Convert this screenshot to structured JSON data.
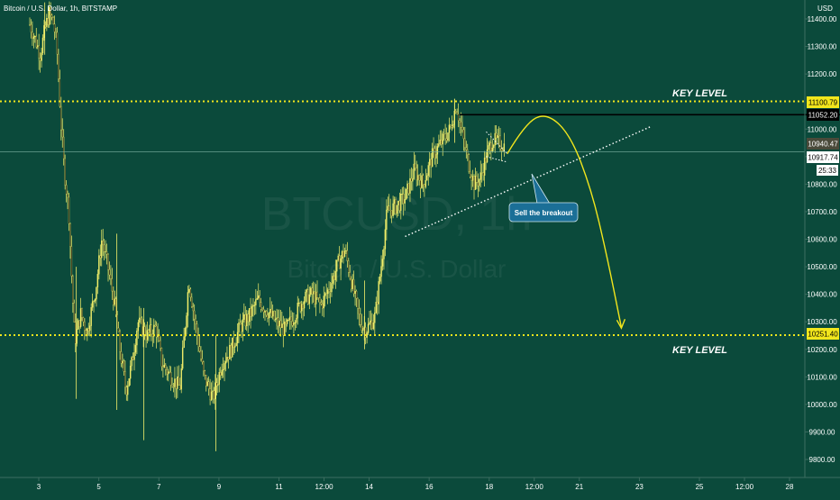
{
  "header": {
    "symbol_title": "Bitcoin / U.S. Dollar, 1h, BITSTAMP",
    "currency": "USD"
  },
  "watermark": {
    "ticker": "BTCUSD, 1h",
    "name": "Bitcoin / U.S. Dollar"
  },
  "colors": {
    "background": "#0b4a3b",
    "candle": "#f5f06a",
    "key_level": "#f2e61c",
    "resistance_line": "#000000",
    "trendline": "#ffffff",
    "callout_bg": "#1b6f97",
    "axis_text": "#ffffff"
  },
  "price_tags": {
    "key_level_upper": "11100.79",
    "resistance": "11052.20",
    "last_price": "10940.47",
    "mid_line": "10917.74",
    "countdown": "25:33",
    "key_level_lower": "10251.40"
  },
  "annotations": {
    "key_level_upper_label": "KEY LEVEL",
    "key_level_lower_label": "KEY LEVEL",
    "callout": "Sell the breakout"
  },
  "chart_data": {
    "type": "candlestick",
    "title": "Bitcoin / U.S. Dollar, 1h, BITSTAMP",
    "ylabel": "USD",
    "ylim": [
      9750,
      11480
    ],
    "y_ticks": [
      11400,
      11300,
      11200,
      11000,
      10900,
      10800,
      10700,
      10600,
      10500,
      10400,
      10300,
      10200,
      10100,
      10000,
      9900,
      9800
    ],
    "x_ticks": [
      "3",
      "5",
      "7",
      "9",
      "11",
      "12:00",
      "14",
      "16",
      "18",
      "12:00",
      "21",
      "23",
      "25",
      "12:00",
      "28"
    ],
    "x_range_days": [
      2.5,
      28.2
    ],
    "series": [
      {
        "type": "close_path",
        "points": [
          {
            "x": 2.7,
            "y": 11380
          },
          {
            "x": 2.9,
            "y": 11320
          },
          {
            "x": 3.05,
            "y": 11270
          },
          {
            "x": 3.2,
            "y": 11360
          },
          {
            "x": 3.35,
            "y": 11420
          },
          {
            "x": 3.5,
            "y": 11380
          },
          {
            "x": 3.6,
            "y": 11300
          },
          {
            "x": 3.75,
            "y": 11000
          },
          {
            "x": 3.85,
            "y": 10850
          },
          {
            "x": 4.0,
            "y": 10700
          },
          {
            "x": 4.1,
            "y": 10450
          },
          {
            "x": 4.2,
            "y": 10230
          },
          {
            "x": 4.4,
            "y": 10330
          },
          {
            "x": 4.6,
            "y": 10260
          },
          {
            "x": 4.9,
            "y": 10420
          },
          {
            "x": 5.1,
            "y": 10600
          },
          {
            "x": 5.3,
            "y": 10500
          },
          {
            "x": 5.5,
            "y": 10380
          },
          {
            "x": 5.7,
            "y": 10200
          },
          {
            "x": 5.9,
            "y": 10050
          },
          {
            "x": 6.1,
            "y": 10150
          },
          {
            "x": 6.3,
            "y": 10300
          },
          {
            "x": 6.6,
            "y": 10250
          },
          {
            "x": 6.9,
            "y": 10280
          },
          {
            "x": 7.1,
            "y": 10150
          },
          {
            "x": 7.4,
            "y": 10100
          },
          {
            "x": 7.7,
            "y": 10060
          },
          {
            "x": 8.0,
            "y": 10450
          },
          {
            "x": 8.2,
            "y": 10300
          },
          {
            "x": 8.5,
            "y": 10100
          },
          {
            "x": 8.8,
            "y": 10020
          },
          {
            "x": 9.1,
            "y": 10150
          },
          {
            "x": 9.4,
            "y": 10200
          },
          {
            "x": 9.7,
            "y": 10280
          },
          {
            "x": 10.0,
            "y": 10320
          },
          {
            "x": 10.3,
            "y": 10380
          },
          {
            "x": 10.6,
            "y": 10340
          },
          {
            "x": 10.9,
            "y": 10300
          },
          {
            "x": 11.2,
            "y": 10270
          },
          {
            "x": 11.5,
            "y": 10320
          },
          {
            "x": 11.8,
            "y": 10380
          },
          {
            "x": 12.1,
            "y": 10400
          },
          {
            "x": 12.4,
            "y": 10360
          },
          {
            "x": 12.7,
            "y": 10430
          },
          {
            "x": 13.0,
            "y": 10520
          },
          {
            "x": 13.2,
            "y": 10560
          },
          {
            "x": 13.4,
            "y": 10450
          },
          {
            "x": 13.7,
            "y": 10300
          },
          {
            "x": 13.9,
            "y": 10270
          },
          {
            "x": 14.2,
            "y": 10320
          },
          {
            "x": 14.4,
            "y": 10500
          },
          {
            "x": 14.6,
            "y": 10700
          },
          {
            "x": 14.9,
            "y": 10720
          },
          {
            "x": 15.2,
            "y": 10750
          },
          {
            "x": 15.5,
            "y": 10850
          },
          {
            "x": 15.8,
            "y": 10800
          },
          {
            "x": 16.1,
            "y": 10900
          },
          {
            "x": 16.4,
            "y": 10950
          },
          {
            "x": 16.7,
            "y": 11000
          },
          {
            "x": 16.9,
            "y": 11090
          },
          {
            "x": 17.1,
            "y": 10980
          },
          {
            "x": 17.3,
            "y": 10880
          },
          {
            "x": 17.5,
            "y": 10800
          },
          {
            "x": 17.7,
            "y": 10820
          },
          {
            "x": 17.9,
            "y": 10900
          },
          {
            "x": 18.1,
            "y": 10960
          },
          {
            "x": 18.3,
            "y": 10950
          },
          {
            "x": 18.5,
            "y": 10940
          }
        ]
      }
    ],
    "levels": [
      {
        "name": "KEY LEVEL",
        "value": 11100.79,
        "style": "dotted",
        "color": "#f2e61c"
      },
      {
        "value": 11052.2,
        "style": "solid",
        "color": "#000000",
        "from_x": 17.0
      },
      {
        "value": 10917.74,
        "style": "solid-thin",
        "color": "#7fb5a5"
      },
      {
        "name": "KEY LEVEL",
        "value": 10251.4,
        "style": "dotted",
        "color": "#f2e61c"
      }
    ],
    "trendline": {
      "from": {
        "x": 15.2,
        "y": 10610
      },
      "to": {
        "x": 23.4,
        "y": 11010
      }
    },
    "triangle_lines": [
      {
        "from": {
          "x": 17.9,
          "y": 10990
        },
        "to": {
          "x": 18.6,
          "y": 10910
        }
      },
      {
        "from": {
          "x": 17.9,
          "y": 10900
        },
        "to": {
          "x": 18.6,
          "y": 10880
        }
      }
    ],
    "projection_arc": [
      {
        "x": 18.6,
        "y": 10910
      },
      {
        "x": 19.2,
        "y": 11020
      },
      {
        "x": 19.9,
        "y": 11060
      },
      {
        "x": 20.7,
        "y": 10980
      },
      {
        "x": 21.4,
        "y": 10780
      },
      {
        "x": 21.9,
        "y": 10550
      },
      {
        "x": 22.4,
        "y": 10280
      }
    ]
  }
}
